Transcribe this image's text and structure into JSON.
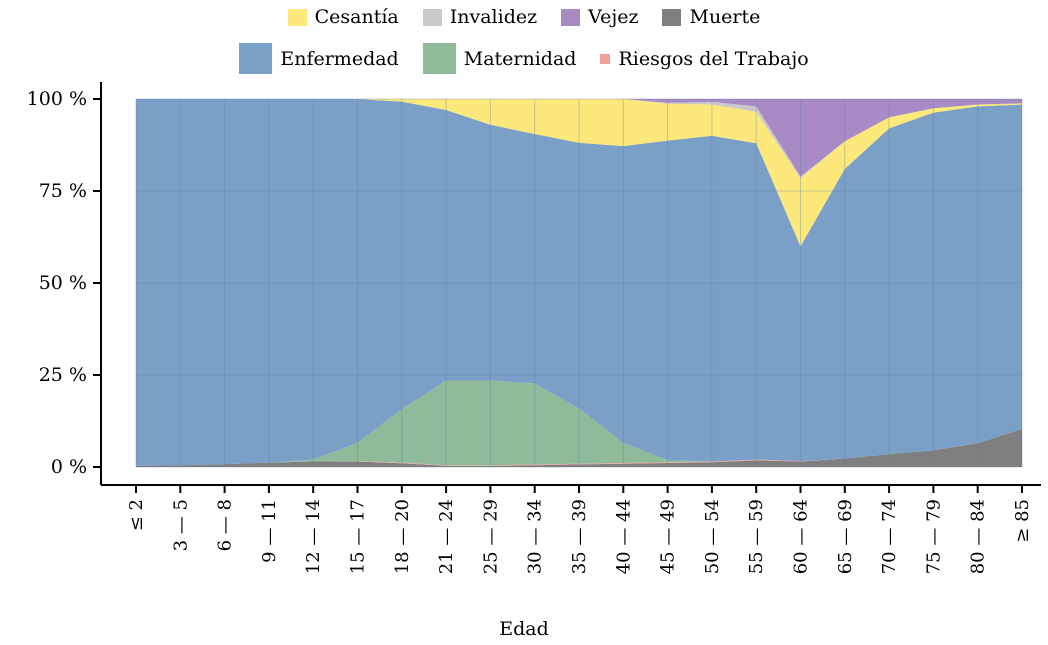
{
  "chart_data": {
    "type": "area",
    "stacked": true,
    "normalized": true,
    "xlabel": "Edad",
    "ylabel": "",
    "ylim": [
      0,
      100
    ],
    "y_ticks": [
      "0 %",
      "25 %",
      "50 %",
      "75 %",
      "100 %"
    ],
    "grid": true,
    "legend_placement": "top",
    "categories": [
      "≤ 2",
      "3 — 5",
      "6 — 8",
      "9 — 11",
      "12 — 14",
      "15 — 17",
      "18 — 20",
      "21 — 24",
      "25 — 29",
      "30 — 34",
      "35 — 39",
      "40 — 44",
      "45 — 49",
      "50 — 54",
      "55 — 59",
      "60 — 64",
      "65 — 69",
      "70 — 74",
      "75 — 79",
      "80 — 84",
      "≥ 85"
    ],
    "series": [
      {
        "name": "Muerte",
        "color": "#7f7f7f",
        "values": [
          0.3,
          0.5,
          0.8,
          1.2,
          1.5,
          1.5,
          1.0,
          0.3,
          0.3,
          0.5,
          0.7,
          0.9,
          1.1,
          1.3,
          1.8,
          1.5,
          2.3,
          3.5,
          4.5,
          6.5,
          10.3
        ]
      },
      {
        "name": "Riesgos del Trabajo",
        "color": "#f4a09a",
        "values": [
          0.0,
          0.0,
          0.0,
          0.0,
          0.0,
          0.1,
          0.2,
          0.2,
          0.2,
          0.2,
          0.2,
          0.2,
          0.2,
          0.2,
          0.2,
          0.1,
          0.0,
          0.0,
          0.0,
          0.0,
          0.0
        ]
      },
      {
        "name": "Maternidad",
        "color": "#90bb9a",
        "values": [
          0.0,
          0.0,
          0.0,
          0.0,
          0.5,
          5.0,
          14.5,
          23.0,
          23.0,
          22.0,
          15.0,
          5.5,
          0.5,
          0.0,
          0.0,
          0.0,
          0.0,
          0.0,
          0.0,
          0.0,
          0.0
        ]
      },
      {
        "name": "Enfermedad",
        "color": "#7ba0c7",
        "values": [
          99.7,
          99.5,
          99.2,
          98.8,
          98.0,
          93.4,
          83.6,
          73.5,
          69.5,
          67.8,
          72.2,
          80.6,
          86.9,
          88.5,
          86.0,
          58.4,
          78.7,
          88.5,
          91.8,
          91.5,
          88.2
        ]
      },
      {
        "name": "Cesantía",
        "color": "#fde87c",
        "values": [
          0.0,
          0.0,
          0.0,
          0.0,
          0.0,
          0.0,
          0.7,
          3.0,
          7.0,
          9.5,
          11.9,
          12.8,
          10.0,
          8.5,
          8.5,
          18.5,
          7.5,
          3.0,
          1.2,
          0.5,
          0.3
        ]
      },
      {
        "name": "Invalidez",
        "color": "#c9c9c9",
        "values": [
          0.0,
          0.0,
          0.0,
          0.0,
          0.0,
          0.0,
          0.0,
          0.0,
          0.0,
          0.0,
          0.0,
          0.0,
          0.3,
          0.7,
          1.5,
          0.4,
          0.0,
          0.0,
          0.0,
          0.0,
          0.0
        ]
      },
      {
        "name": "Vejez",
        "color": "#a88bc5",
        "values": [
          0.0,
          0.0,
          0.0,
          0.0,
          0.0,
          0.0,
          0.0,
          0.0,
          0.0,
          0.0,
          0.0,
          0.0,
          1.0,
          0.8,
          2.0,
          21.1,
          11.5,
          5.0,
          2.5,
          1.5,
          1.2
        ]
      }
    ]
  },
  "legend": {
    "row1": [
      {
        "name": "Cesantía",
        "color": "#fde87c",
        "size": "big"
      },
      {
        "name": "Invalidez",
        "color": "#c9c9c9",
        "size": "big"
      },
      {
        "name": "Vejez",
        "color": "#a88bc5",
        "size": "big"
      },
      {
        "name": "Muerte",
        "color": "#7f7f7f",
        "size": "big"
      }
    ],
    "row2": [
      {
        "name": "Enfermedad",
        "color": "#7ba0c7",
        "size": "tall"
      },
      {
        "name": "Maternidad",
        "color": "#90bb9a",
        "size": "tall"
      },
      {
        "name": "Riesgos del Trabajo",
        "color": "#f4a09a",
        "size": "small"
      }
    ]
  }
}
